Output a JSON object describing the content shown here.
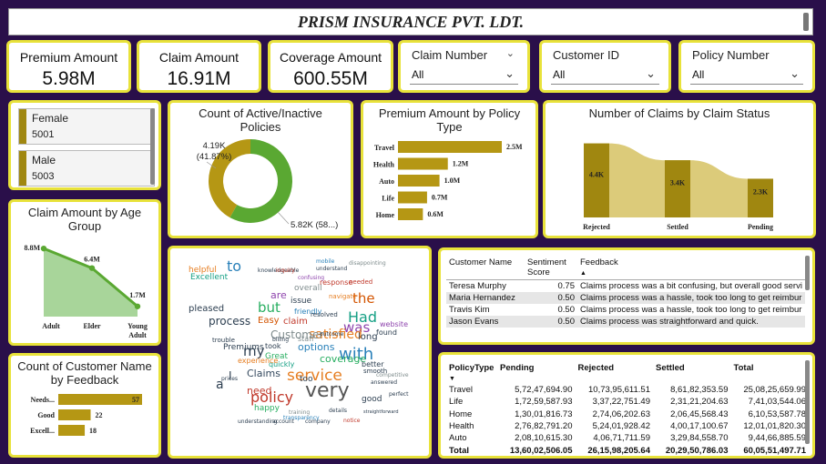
{
  "header": {
    "title": "PRISM INSURANCE PVT. LDT."
  },
  "kpis": [
    {
      "label": "Premium Amount",
      "value": "5.98M"
    },
    {
      "label": "Claim Amount",
      "value": "16.91M"
    },
    {
      "label": "Coverage Amount",
      "value": "600.55M"
    }
  ],
  "slicers": [
    {
      "label": "Claim Number",
      "value": "All"
    },
    {
      "label": "Customer ID",
      "value": "All"
    },
    {
      "label": "Policy Number",
      "value": "All"
    }
  ],
  "gender": [
    {
      "label": "Female",
      "count": "5001"
    },
    {
      "label": "Male",
      "count": "5003"
    }
  ],
  "colors": {
    "accent": "#a08710",
    "border": "#e8e23a",
    "background": "#2a0f4a",
    "green": "#5aa832",
    "gold": "#b59714",
    "sankey": "#dccb7a"
  },
  "chart_data": [
    {
      "type": "pie",
      "title": "Count of Active/Inactive Policies",
      "slices": [
        {
          "value": 4190,
          "label": "4.19K",
          "pct": "(41.87%)",
          "color": "#b59714"
        },
        {
          "value": 5820,
          "label": "5.82K (58...)",
          "color": "#5aa832"
        }
      ]
    },
    {
      "type": "bar",
      "title": "Premium Amount by Policy Type",
      "categories": [
        "Travel",
        "Health",
        "Auto",
        "Life",
        "Home"
      ],
      "values": [
        2.5,
        1.2,
        1.0,
        0.7,
        0.6
      ],
      "labels": [
        "2.5M",
        "1.2M",
        "1.0M",
        "0.7M",
        "0.6M"
      ]
    },
    {
      "type": "bar",
      "title": "Number of Claims by Claim Status",
      "categories": [
        "Rejected",
        "Settled",
        "Pending"
      ],
      "values": [
        4.4,
        3.4,
        2.3
      ],
      "labels": [
        "4.4K",
        "3.4K",
        "2.3K"
      ]
    },
    {
      "type": "area",
      "title": "Claim Amount by Age Group",
      "categories": [
        "Adult",
        "Elder",
        "Young Adult"
      ],
      "values": [
        8.8,
        6.4,
        1.7
      ],
      "labels": [
        "8.8M",
        "6.4M",
        "1.7M"
      ]
    },
    {
      "type": "bar",
      "title": "Count of Customer Name by Feedback",
      "categories": [
        "Needs...",
        "Good",
        "Excell..."
      ],
      "values": [
        57,
        22,
        18
      ],
      "labels": [
        "57",
        "22",
        "18"
      ]
    }
  ],
  "wordcloud": [
    {
      "w": "very",
      "s": 22,
      "c": "#555555"
    },
    {
      "w": "service",
      "s": 17,
      "c": "#e67e22"
    },
    {
      "w": "with",
      "s": 18,
      "c": "#2980b9"
    },
    {
      "w": "policy",
      "s": 16,
      "c": "#c0392b"
    },
    {
      "w": "Had",
      "s": 16,
      "c": "#16a085"
    },
    {
      "w": "was",
      "s": 15,
      "c": "#8e44ad"
    },
    {
      "w": "my",
      "s": 15,
      "c": "#2c3e50"
    },
    {
      "w": "but",
      "s": 15,
      "c": "#27ae60"
    },
    {
      "w": "satisfied",
      "s": 14,
      "c": "#e67e22"
    },
    {
      "w": "the",
      "s": 15,
      "c": "#d35400"
    },
    {
      "w": "process",
      "s": 12,
      "c": "#2c3e50"
    },
    {
      "w": "Customer",
      "s": 12,
      "c": "#7f8c8d"
    },
    {
      "w": "to",
      "s": 16,
      "c": "#2980b9"
    },
    {
      "w": "Claims",
      "s": 11,
      "c": "#34495e"
    },
    {
      "w": "need",
      "s": 11,
      "c": "#c0392b"
    },
    {
      "w": "coverage",
      "s": 11,
      "c": "#27ae60"
    },
    {
      "w": "options",
      "s": 11,
      "c": "#2980b9"
    },
    {
      "w": "pleased",
      "s": 10,
      "c": "#2c3e50"
    },
    {
      "w": "Excellent",
      "s": 9,
      "c": "#16a085"
    },
    {
      "w": "helpful",
      "s": 9,
      "c": "#e67e22"
    },
    {
      "w": "Premiums",
      "s": 9,
      "c": "#2c3e50"
    },
    {
      "w": "claim",
      "s": 10,
      "c": "#c0392b"
    },
    {
      "w": "are",
      "s": 11,
      "c": "#8e44ad"
    },
    {
      "w": "Easy",
      "s": 10,
      "c": "#d35400"
    },
    {
      "w": "long",
      "s": 10,
      "c": "#2c3e50"
    },
    {
      "w": "happy",
      "s": 9,
      "c": "#27ae60"
    },
    {
      "w": "good",
      "s": 9,
      "c": "#2c3e50"
    },
    {
      "w": "overall",
      "s": 9,
      "c": "#7f8c8d"
    },
    {
      "w": "issue",
      "s": 9,
      "c": "#2c3e50"
    },
    {
      "w": "response",
      "s": 8,
      "c": "#c0392b"
    },
    {
      "w": "friendly",
      "s": 8,
      "c": "#2980b9"
    },
    {
      "w": "website",
      "s": 8,
      "c": "#8e44ad"
    },
    {
      "w": "found",
      "s": 8,
      "c": "#2c3e50"
    },
    {
      "w": "quickly",
      "s": 8,
      "c": "#16a085"
    },
    {
      "w": "took",
      "s": 8,
      "c": "#2c3e50"
    },
    {
      "w": "Great",
      "s": 9,
      "c": "#27ae60"
    },
    {
      "w": "better",
      "s": 8,
      "c": "#2c3e50"
    },
    {
      "w": "staff",
      "s": 8,
      "c": "#7f8c8d"
    },
    {
      "w": "experience",
      "s": 8,
      "c": "#e67e22"
    },
    {
      "w": "too",
      "s": 9,
      "c": "#2c3e50"
    },
    {
      "w": "a",
      "s": 14,
      "c": "#2c3e50"
    },
    {
      "w": "I",
      "s": 12,
      "c": "#2c3e50"
    },
    {
      "w": "resolved",
      "s": 7,
      "c": "#2c3e50"
    },
    {
      "w": "navigate",
      "s": 7,
      "c": "#e67e22"
    },
    {
      "w": "needed",
      "s": 7,
      "c": "#c0392b"
    },
    {
      "w": "knowledgeable",
      "s": 6,
      "c": "#2c3e50"
    },
    {
      "w": "understand",
      "s": 6,
      "c": "#2c3e50"
    },
    {
      "w": "confusing",
      "s": 6,
      "c": "#8e44ad"
    },
    {
      "w": "disappointing",
      "s": 6,
      "c": "#7f8c8d"
    },
    {
      "w": "mobile",
      "s": 6,
      "c": "#2980b9"
    },
    {
      "w": "inquiry",
      "s": 6,
      "c": "#c0392b"
    },
    {
      "w": "billing",
      "s": 6,
      "c": "#2c3e50"
    },
    {
      "w": "outcome",
      "s": 6,
      "c": "#2c3e50"
    },
    {
      "w": "smooth",
      "s": 7,
      "c": "#2c3e50"
    },
    {
      "w": "competitive",
      "s": 6,
      "c": "#7f8c8d"
    },
    {
      "w": "answered",
      "s": 6,
      "c": "#2c3e50"
    },
    {
      "w": "perfect",
      "s": 6,
      "c": "#2c3e50"
    },
    {
      "w": "prices",
      "s": 6,
      "c": "#2c3e50"
    },
    {
      "w": "trouble",
      "s": 7,
      "c": "#2c3e50"
    },
    {
      "w": "training",
      "s": 6,
      "c": "#7f8c8d"
    },
    {
      "w": "details",
      "s": 6,
      "c": "#2c3e50"
    },
    {
      "w": "transparency",
      "s": 6,
      "c": "#2980b9"
    },
    {
      "w": "understanding",
      "s": 6,
      "c": "#2c3e50"
    },
    {
      "w": "account",
      "s": 6,
      "c": "#2c3e50"
    },
    {
      "w": "company",
      "s": 6,
      "c": "#2c3e50"
    },
    {
      "w": "notice",
      "s": 6,
      "c": "#c0392b"
    },
    {
      "w": "straightforward",
      "s": 5,
      "c": "#2c3e50"
    }
  ],
  "feedback_table": {
    "headers": [
      "Customer Name",
      "Sentiment Score",
      "Feedback"
    ],
    "rows": [
      [
        "Teresa Murphy",
        "0.75",
        "Claims process was a bit confusing, but overall good servi"
      ],
      [
        "Maria Hernandez",
        "0.50",
        "Claims process was a hassle, took too long to get reimbur"
      ],
      [
        "Travis Kim",
        "0.50",
        "Claims process was a hassle, took too long to get reimbur"
      ],
      [
        "Jason Evans",
        "0.50",
        "Claims process was straightforward and quick."
      ]
    ]
  },
  "policy_table": {
    "headers": [
      "PolicyType",
      "Pending",
      "Rejected",
      "Settled",
      "Total"
    ],
    "rows": [
      [
        "Travel",
        "5,72,47,694.90",
        "10,73,95,611.51",
        "8,61,82,353.59",
        "25,08,25,659.99"
      ],
      [
        "Life",
        "1,72,59,587.93",
        "3,37,22,751.49",
        "2,31,21,204.63",
        "7,41,03,544.06"
      ],
      [
        "Home",
        "1,30,01,816.73",
        "2,74,06,202.63",
        "2,06,45,568.43",
        "6,10,53,587.78"
      ],
      [
        "Health",
        "2,76,82,791.20",
        "5,24,01,928.42",
        "4,00,17,100.67",
        "12,01,01,820.30"
      ],
      [
        "Auto",
        "2,08,10,615.30",
        "4,06,71,711.59",
        "3,29,84,558.70",
        "9,44,66,885.59"
      ]
    ],
    "total": [
      "Total",
      "13,60,02,506.05",
      "26,15,98,205.64",
      "20,29,50,786.03",
      "60,05,51,497.71"
    ]
  }
}
